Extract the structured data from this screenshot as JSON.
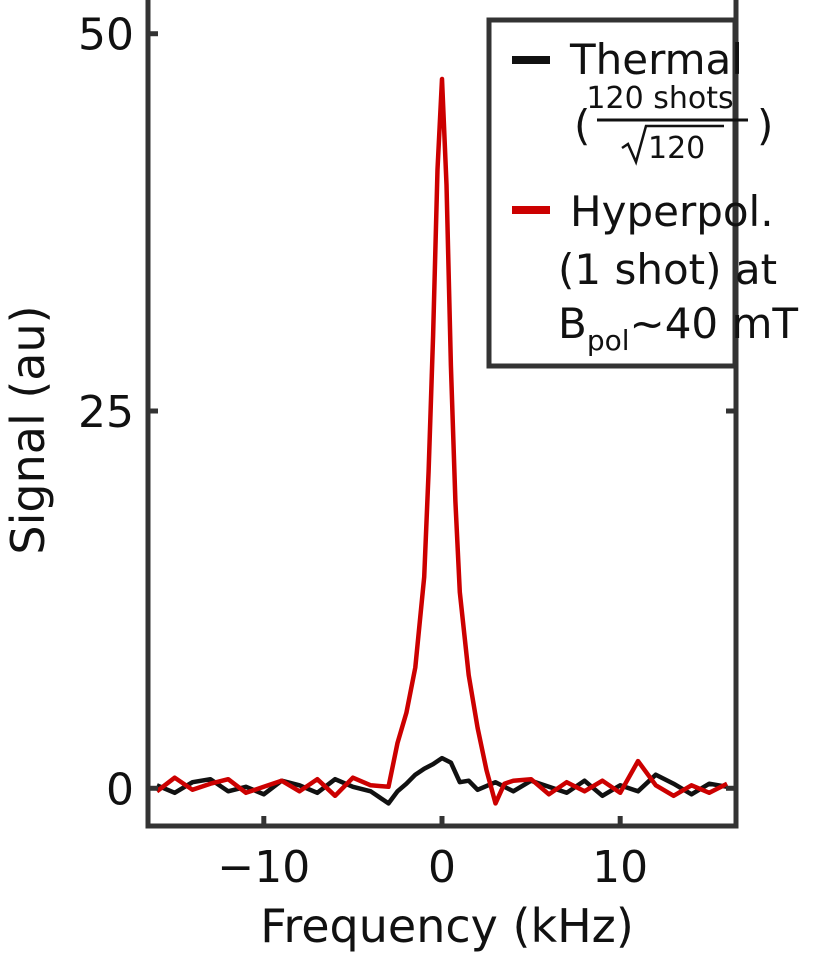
{
  "chart_data": {
    "type": "line",
    "xlabel": "Frequency (kHz)",
    "ylabel": "Signal (au)",
    "xlim": [
      -16.5,
      16.5
    ],
    "ylim": [
      -2.5,
      52.5
    ],
    "xticks": [
      -10,
      0,
      10
    ],
    "xtick_labels": [
      "−10",
      "0",
      "10"
    ],
    "yticks": [
      0,
      25,
      50
    ],
    "ytick_labels": [
      "0",
      "25",
      "50"
    ],
    "grid": false,
    "legend_position": "top-right",
    "series": [
      {
        "name": "Thermal",
        "color": "#111111",
        "x": [
          -16,
          -15,
          -14,
          -13,
          -12,
          -11,
          -10,
          -9,
          -8,
          -7,
          -6,
          -5,
          -4,
          -3,
          -2.5,
          -2,
          -1.5,
          -1,
          -0.5,
          0,
          0.5,
          1,
          1.5,
          2,
          3,
          4,
          5,
          6,
          7,
          8,
          9,
          10,
          11,
          12,
          13,
          14,
          15,
          16
        ],
        "y": [
          0.2,
          -0.3,
          0.4,
          0.6,
          -0.2,
          0.1,
          -0.4,
          0.5,
          0.2,
          -0.3,
          0.6,
          0.1,
          -0.2,
          -1.0,
          -0.2,
          0.3,
          0.9,
          1.3,
          1.6,
          2.0,
          1.7,
          0.4,
          0.5,
          -0.1,
          0.4,
          -0.2,
          0.5,
          0.1,
          -0.3,
          0.5,
          -0.5,
          0.2,
          -0.2,
          0.9,
          0.3,
          -0.4,
          0.3,
          0.1
        ]
      },
      {
        "name": "Hyperpol. (1 shot) at B_pol~40 mT",
        "color": "#cc0000",
        "x": [
          -16,
          -15,
          -14,
          -13,
          -12,
          -11,
          -10,
          -9,
          -8,
          -7,
          -6,
          -5,
          -4,
          -3,
          -2.5,
          -2,
          -1.5,
          -1,
          -0.75,
          -0.5,
          -0.25,
          0,
          0.25,
          0.5,
          0.75,
          1,
          1.5,
          2,
          2.5,
          3,
          3.5,
          4,
          5,
          6,
          7,
          8,
          9,
          10,
          11,
          12,
          13,
          14,
          15,
          16
        ],
        "y": [
          -0.2,
          0.7,
          -0.1,
          0.3,
          0.6,
          -0.3,
          0.1,
          0.5,
          -0.2,
          0.6,
          -0.5,
          0.7,
          0.2,
          0.1,
          3.0,
          5.0,
          8.0,
          14.0,
          21.0,
          30.0,
          41.0,
          47.0,
          40.0,
          28.0,
          19.0,
          13.0,
          7.5,
          4.0,
          1.2,
          -1.0,
          0.3,
          0.5,
          0.6,
          -0.4,
          0.4,
          -0.2,
          0.5,
          -0.3,
          1.8,
          0.2,
          -0.5,
          0.2,
          -0.3,
          0.3
        ]
      }
    ],
    "legend": {
      "thermal_label": "Thermal",
      "thermal_fraction_numerator": "120 shots",
      "thermal_fraction_denominator": "120",
      "hyper_line1": "Hyperpol.",
      "hyper_line2": "(1 shot) at",
      "hyper_b": "B",
      "hyper_pol": "pol",
      "hyper_rest": "~40 mT"
    }
  }
}
